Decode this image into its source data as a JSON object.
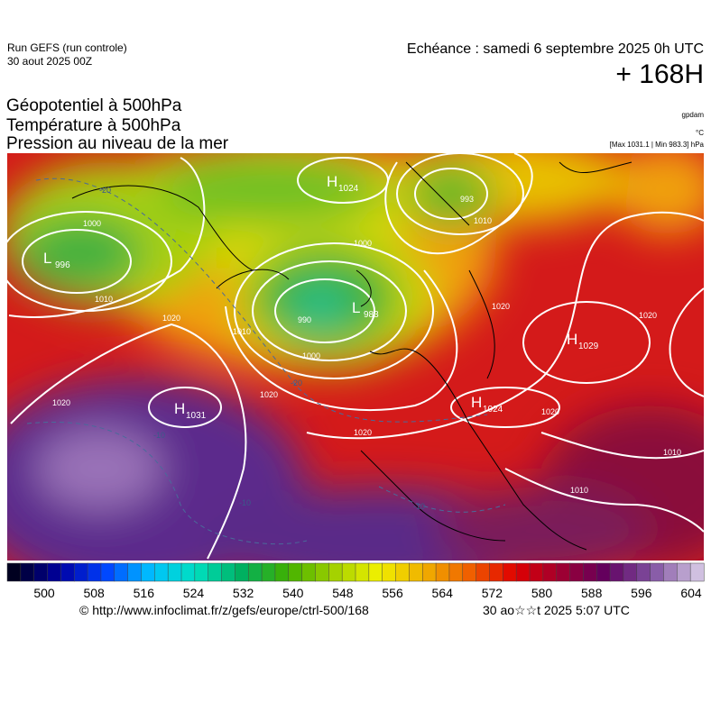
{
  "header": {
    "run": "Run GEFS (run controle)",
    "date": "30 aout 2025 00Z",
    "echeance": "Echéance : samedi 6 septembre 2025 0h UTC",
    "lead": "+ 168H"
  },
  "titles": [
    "Géopotentiel à 500hPa",
    "Température à 500hPa",
    "Pression au niveau de la mer"
  ],
  "units": [
    "gpdam",
    "°C",
    "[Max 1031.1 | Min 983.3] hPa"
  ],
  "centers": [
    {
      "type": "H",
      "value": "1024"
    },
    {
      "type": "L",
      "value": "996"
    },
    {
      "type": "L",
      "value": "983"
    },
    {
      "type": "H",
      "value": "1029"
    },
    {
      "type": "H",
      "value": "1031"
    },
    {
      "type": "H",
      "value": "1024"
    }
  ],
  "isobar_labels": [
    "993",
    "1000",
    "1010",
    "1020",
    "1020",
    "1000",
    "1000",
    "1010",
    "990",
    "1020",
    "1020",
    "1020",
    "1020",
    "1010",
    "1010",
    "1020",
    "1010"
  ],
  "temperature_labels": [
    "-20",
    "-20",
    "-10",
    "-10",
    "-10"
  ],
  "colorbar": {
    "ticks": [
      500,
      508,
      516,
      524,
      532,
      540,
      548,
      556,
      564,
      572,
      580,
      588,
      596,
      604
    ]
  },
  "footer": {
    "url": "© http://www.infoclimat.fr/z/gefs/europe/ctrl-500/168",
    "timestamp": "30 ao☆☆t 2025  5:07 UTC"
  }
}
